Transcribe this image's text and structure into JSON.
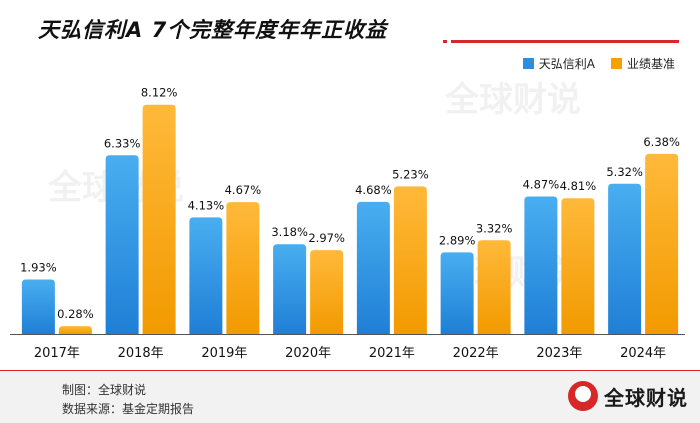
{
  "header": {
    "title": "天弘信利A 7个完整年度年年正收益"
  },
  "footer": {
    "maker": "制图：全球财说",
    "source": "数据来源：基金定期报告",
    "brand": "全球财说"
  },
  "watermark": "全球财说",
  "colors": {
    "series_a": "#2a8fe0",
    "series_b": "#f5a100",
    "accent": "#d62828"
  },
  "chart_data": {
    "type": "bar",
    "title": "天弘信利A 7个完整年度年年正收益",
    "categories": [
      "2017年",
      "2018年",
      "2019年",
      "2020年",
      "2021年",
      "2022年",
      "2023年",
      "2024年"
    ],
    "series": [
      {
        "name": "天弘信利A",
        "values": [
          1.93,
          6.33,
          4.13,
          3.18,
          4.68,
          2.89,
          4.87,
          5.32
        ],
        "labels": [
          "1.93%",
          "6.33%",
          "4.13%",
          "3.18%",
          "4.68%",
          "2.89%",
          "4.87%",
          "5.32%"
        ]
      },
      {
        "name": "业绩基准",
        "values": [
          0.28,
          8.12,
          4.67,
          2.97,
          5.23,
          3.32,
          4.81,
          6.38
        ],
        "labels": [
          "0.28%",
          "8.12%",
          "4.67%",
          "2.97%",
          "5.23%",
          "3.32%",
          "4.81%",
          "6.38%"
        ]
      }
    ],
    "ylim": [
      0,
      8.5
    ],
    "grid": false,
    "legend": "top-right",
    "xlabel": "",
    "ylabel": ""
  }
}
